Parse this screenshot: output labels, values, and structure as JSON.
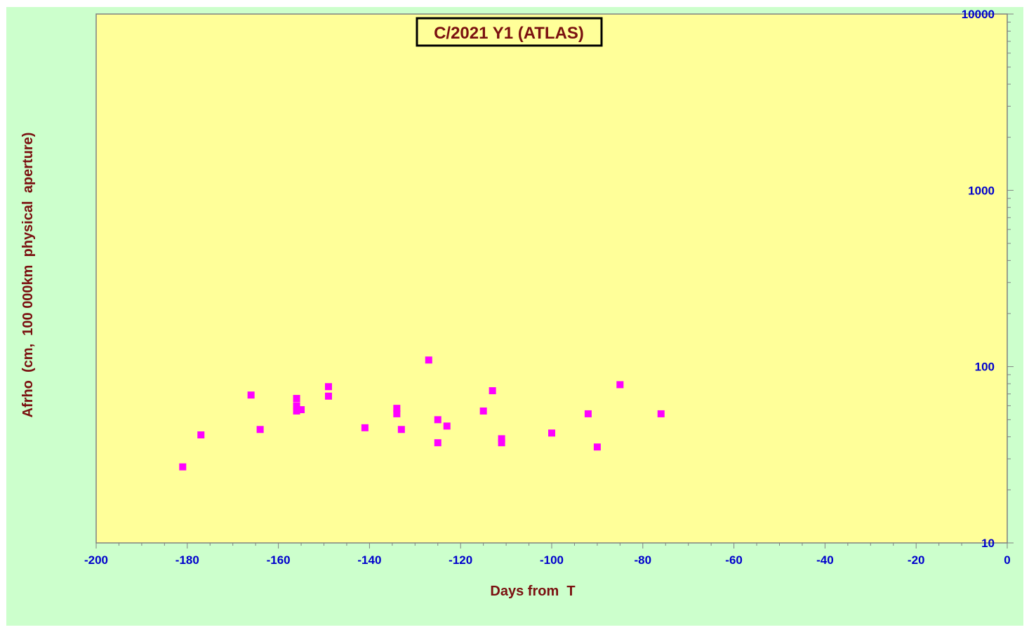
{
  "colors": {
    "background": "#ccffcc",
    "plot_area": "#ffff99",
    "marker": "#ff00ff",
    "tick_label": "#0000cc",
    "title_text": "#7a1010",
    "axis_line": "#808080"
  },
  "chart_data": {
    "type": "scatter",
    "title": "C/2021 Y1 (ATLAS)",
    "xlabel": "Days from  T",
    "ylabel": "Afrho  (cm,  100 000km  physical  aperture)",
    "xlim": [
      -200,
      0
    ],
    "ylim": [
      10,
      10000
    ],
    "yscale": "log",
    "grid": false,
    "legend": "none",
    "x_ticks": [
      -200,
      -180,
      -160,
      -140,
      -120,
      -100,
      -80,
      -60,
      -40,
      -20,
      0
    ],
    "x_tick_labels": [
      "-200",
      "-180",
      "-160",
      "-140",
      "-120",
      "-100",
      "-80",
      "-60",
      "-40",
      "-20",
      "0"
    ],
    "y_ticks": [
      10,
      100,
      1000,
      10000
    ],
    "y_tick_labels": [
      "10",
      "100",
      "1000",
      "10000"
    ],
    "series": [
      {
        "marker": "square",
        "points": [
          [
            -181,
            27
          ],
          [
            -177,
            41
          ],
          [
            -166,
            69
          ],
          [
            -164,
            44
          ],
          [
            -156,
            66
          ],
          [
            -156,
            60
          ],
          [
            -156,
            56
          ],
          [
            -155,
            57
          ],
          [
            -149,
            77
          ],
          [
            -149,
            68
          ],
          [
            -141,
            45
          ],
          [
            -134,
            58
          ],
          [
            -134,
            54
          ],
          [
            -133,
            44
          ],
          [
            -127,
            109
          ],
          [
            -125,
            50
          ],
          [
            -125,
            37
          ],
          [
            -123,
            46
          ],
          [
            -115,
            56
          ],
          [
            -113,
            73
          ],
          [
            -111,
            39
          ],
          [
            -111,
            37
          ],
          [
            -100,
            42
          ],
          [
            -92,
            54
          ],
          [
            -90,
            35
          ],
          [
            -85,
            79
          ],
          [
            -76,
            54
          ]
        ]
      }
    ]
  }
}
